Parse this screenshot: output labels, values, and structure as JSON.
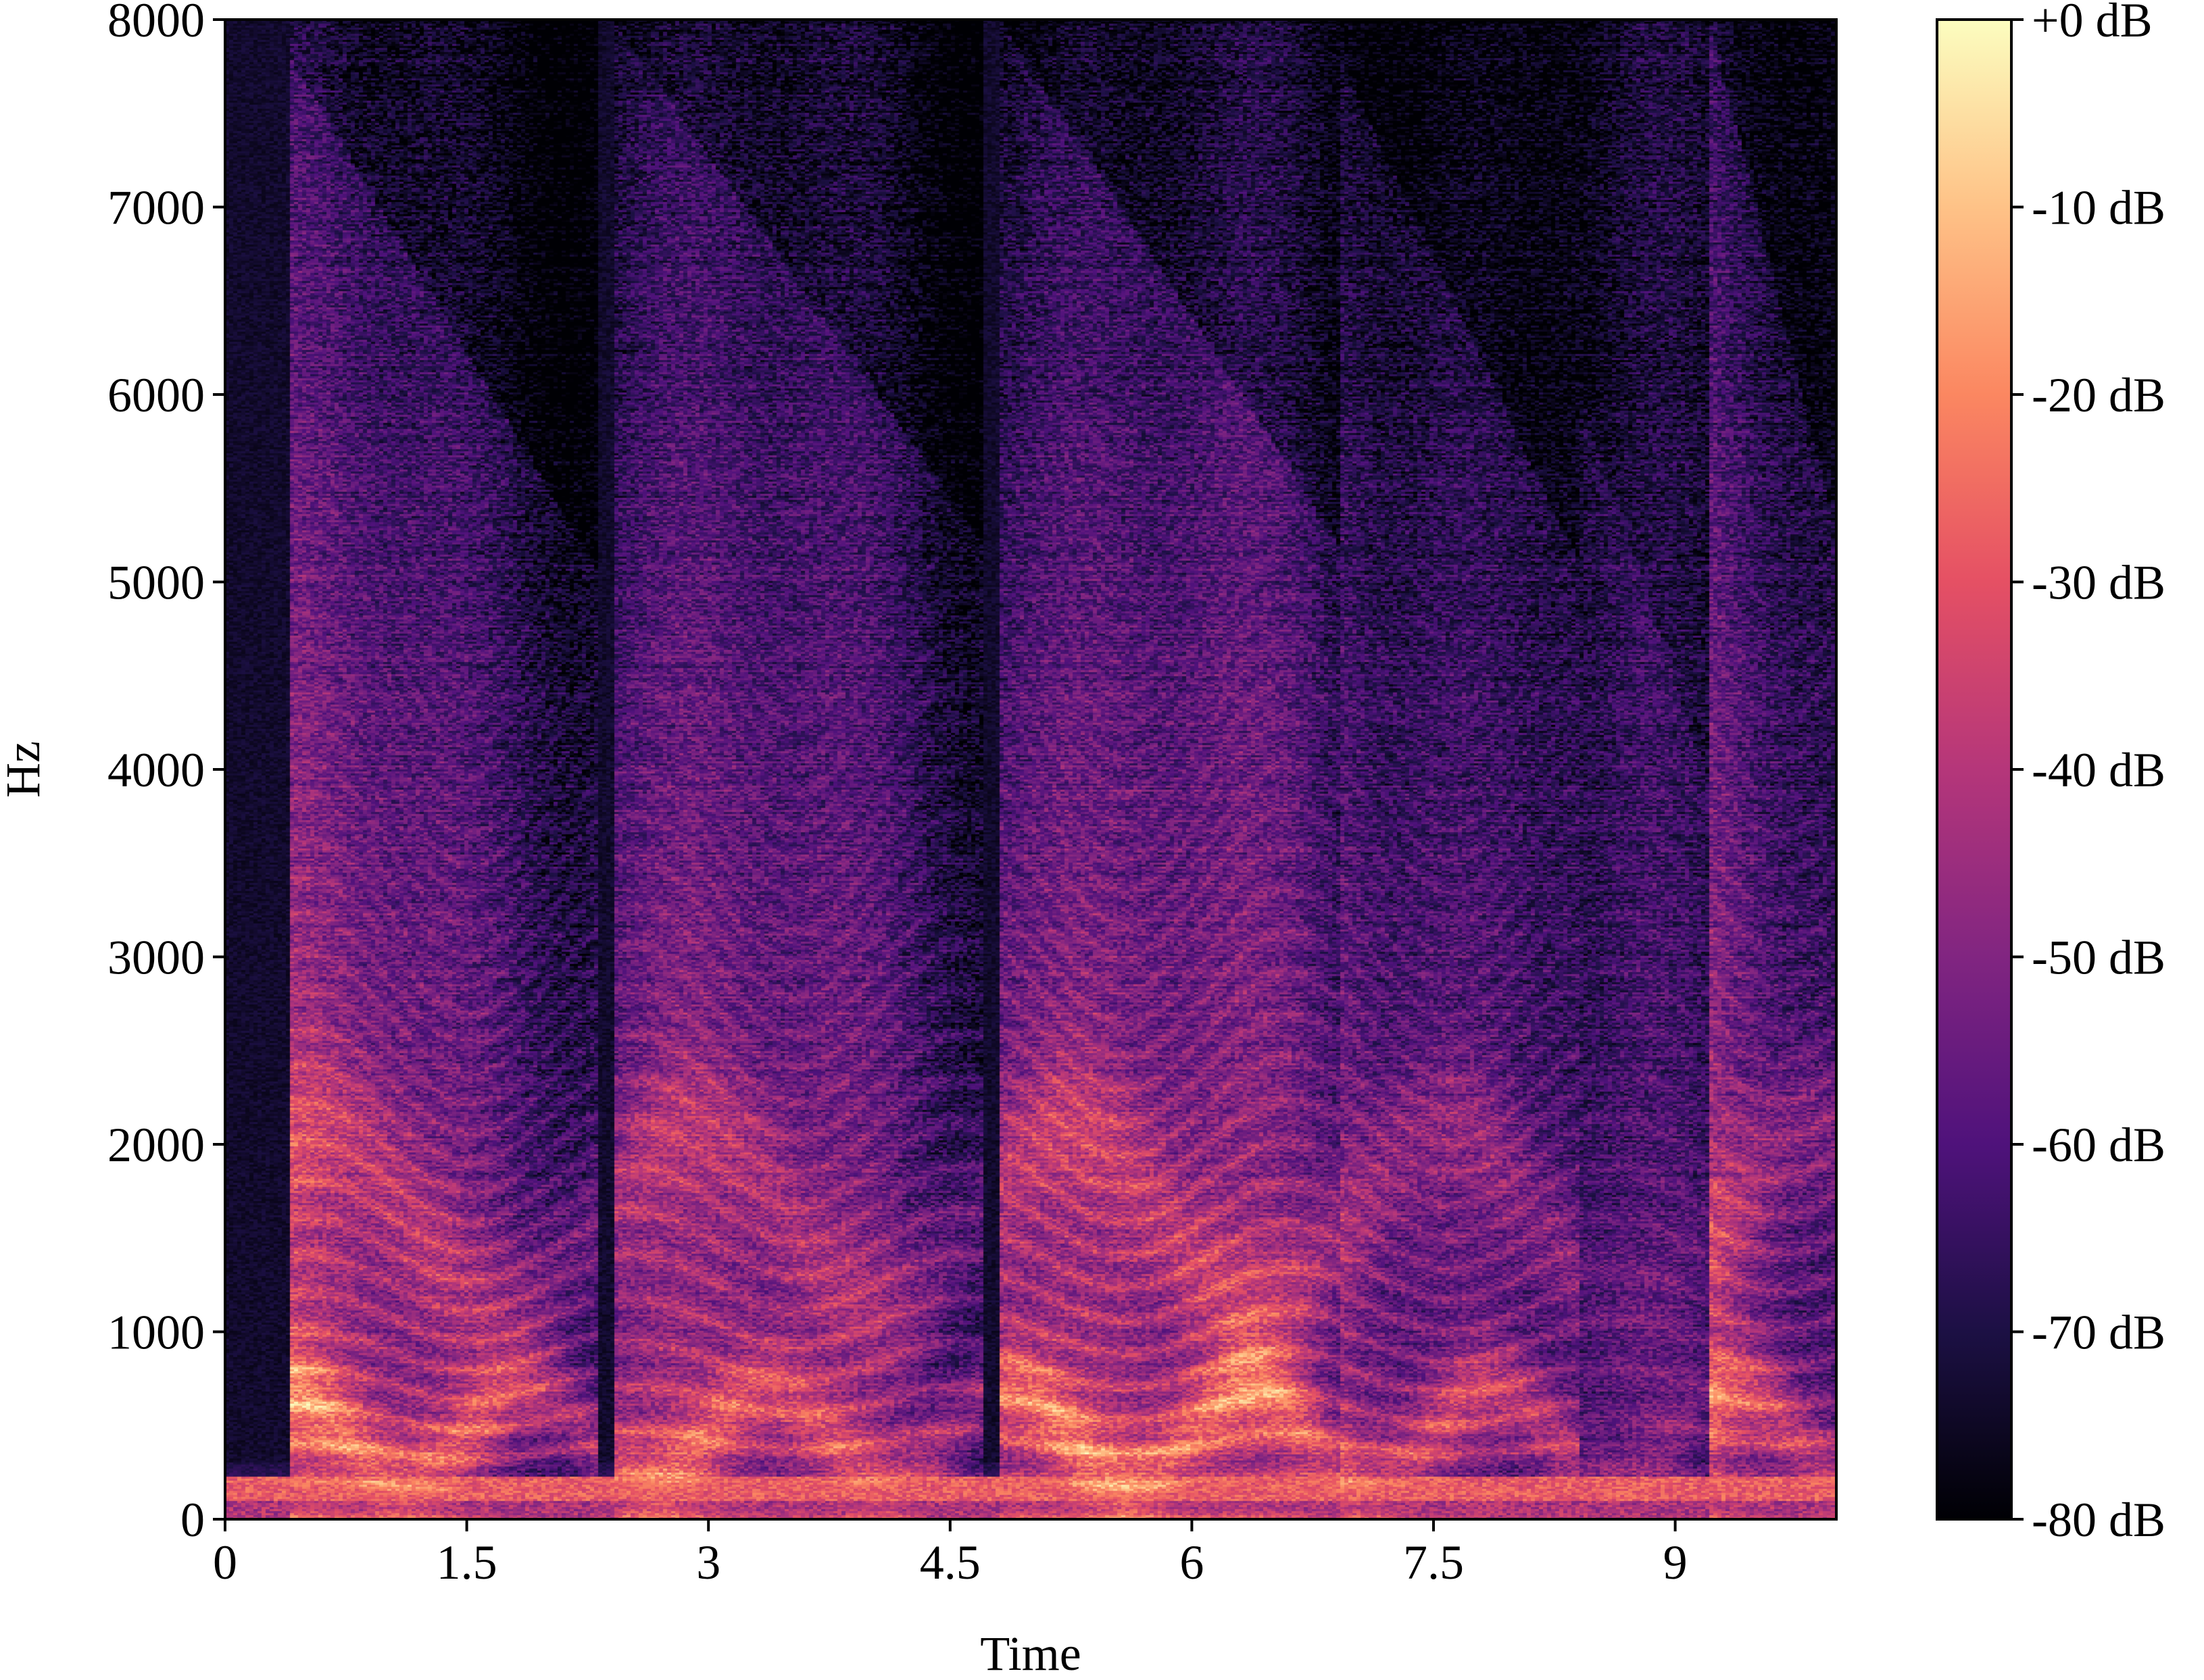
{
  "chart_data": {
    "type": "heatmap",
    "subtype": "spectrogram",
    "title": "",
    "xlabel": "Time",
    "ylabel": "Hz",
    "xlim": [
      0,
      10.0
    ],
    "ylim": [
      0,
      8000
    ],
    "x_ticks": [
      {
        "value": 0,
        "label": "0"
      },
      {
        "value": 1.5,
        "label": "1.5"
      },
      {
        "value": 3,
        "label": "3"
      },
      {
        "value": 4.5,
        "label": "4.5"
      },
      {
        "value": 6,
        "label": "6"
      },
      {
        "value": 7.5,
        "label": "7.5"
      },
      {
        "value": 9,
        "label": "9"
      }
    ],
    "y_ticks": [
      {
        "value": 0,
        "label": "0"
      },
      {
        "value": 1000,
        "label": "1000"
      },
      {
        "value": 2000,
        "label": "2000"
      },
      {
        "value": 3000,
        "label": "3000"
      },
      {
        "value": 4000,
        "label": "4000"
      },
      {
        "value": 5000,
        "label": "5000"
      },
      {
        "value": 6000,
        "label": "6000"
      },
      {
        "value": 7000,
        "label": "7000"
      },
      {
        "value": 8000,
        "label": "8000"
      }
    ],
    "colorbar": {
      "colormap": "magma",
      "range_db": [
        -80,
        0
      ],
      "stops": [
        "#000004",
        "#1c1044",
        "#4f127b",
        "#812581",
        "#b5367a",
        "#e55064",
        "#fb8761",
        "#fec287",
        "#fcfdbf"
      ],
      "ticks": [
        {
          "value": 0,
          "label": "+0 dB"
        },
        {
          "value": -10,
          "label": "-10 dB"
        },
        {
          "value": -20,
          "label": "-20 dB"
        },
        {
          "value": -30,
          "label": "-30 dB"
        },
        {
          "value": -40,
          "label": "-40 dB"
        },
        {
          "value": -50,
          "label": "-50 dB"
        },
        {
          "value": -60,
          "label": "-60 dB"
        },
        {
          "value": -70,
          "label": "-70 dB"
        },
        {
          "value": -80,
          "label": "-80 dB"
        }
      ]
    },
    "segments": [
      {
        "start": 0.4,
        "end": 2.3,
        "intensity": 0.85,
        "top_hz": 7800,
        "pitch_hz": 180
      },
      {
        "start": 2.4,
        "end": 4.7,
        "intensity": 0.78,
        "top_hz": 8000,
        "pitch_hz": 210
      },
      {
        "start": 4.8,
        "end": 6.9,
        "intensity": 0.92,
        "top_hz": 8000,
        "pitch_hz": 200
      },
      {
        "start": 6.9,
        "end": 8.4,
        "intensity": 0.8,
        "top_hz": 7800,
        "pitch_hz": 190
      },
      {
        "start": 8.4,
        "end": 9.2,
        "intensity": 0.4,
        "top_hz": 6000,
        "pitch_hz": 240
      },
      {
        "start": 9.2,
        "end": 10.0,
        "intensity": 0.82,
        "top_hz": 8000,
        "pitch_hz": 230
      }
    ]
  }
}
